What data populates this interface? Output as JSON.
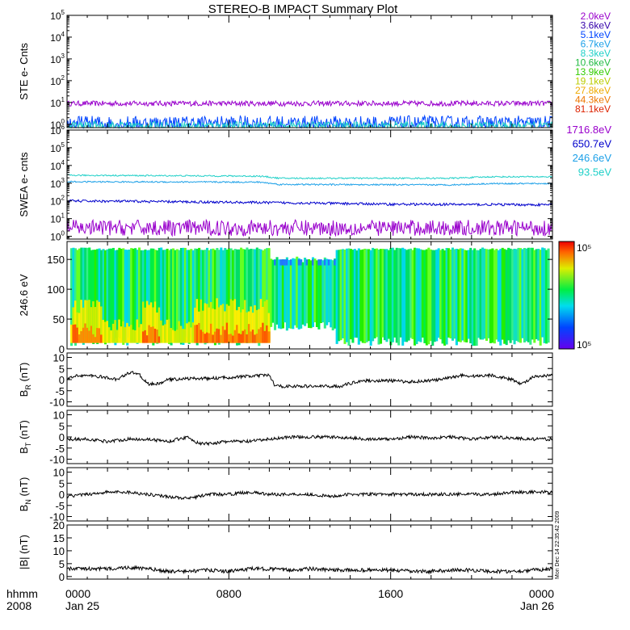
{
  "title": "STEREO-B IMPACT Summary Plot",
  "stamp": "Mon Dec 14 22:35:42 2009",
  "time_axis": {
    "label_line1": "hhmm",
    "label_line2": "2008",
    "ticks": [
      {
        "hour": 0,
        "label": "0000",
        "date": "Jan 25"
      },
      {
        "hour": 8,
        "label": "0800",
        "date": ""
      },
      {
        "hour": 16,
        "label": "1600",
        "date": ""
      },
      {
        "hour": 24,
        "label": "0000",
        "date": "Jan 26"
      }
    ],
    "range_hours": [
      0,
      24
    ]
  },
  "chart_data": [
    {
      "id": "ste",
      "type": "line",
      "ylabel": "STE e- Cnts",
      "yscale": "log",
      "ylim": [
        0.7,
        100000
      ],
      "yticks": [
        1,
        10,
        100,
        1000,
        10000,
        100000
      ],
      "legend": [
        {
          "label": "2.0keV",
          "color": "#9900cc"
        },
        {
          "label": "3.6keV",
          "color": "#3300aa"
        },
        {
          "label": "5.1keV",
          "color": "#0044ff"
        },
        {
          "label": "6.7keV",
          "color": "#1ca0e8"
        },
        {
          "label": "8.3keV",
          "color": "#1fd0c8"
        },
        {
          "label": "10.6keV",
          "color": "#22bb44"
        },
        {
          "label": "13.9keV",
          "color": "#33cc00"
        },
        {
          "label": "19.1keV",
          "color": "#bbcc00"
        },
        {
          "label": "27.8keV",
          "color": "#eeaa00"
        },
        {
          "label": "44.3keV",
          "color": "#ee7700"
        },
        {
          "label": "81.1keV",
          "color": "#dd2200"
        }
      ],
      "series": [
        {
          "color": "#9900cc",
          "level": 9.0,
          "noise": 0.12
        },
        {
          "color": "#0044ff",
          "level": 1.1,
          "noise": 0.35
        },
        {
          "color": "#1fd0c8",
          "level": 0.85,
          "noise": 0.2
        }
      ]
    },
    {
      "id": "swea",
      "type": "line",
      "ylabel": "SWEA e- cnts",
      "yscale": "log",
      "ylim": [
        0.7,
        1000000
      ],
      "yticks": [
        1,
        10,
        100,
        1000,
        10000,
        100000,
        1000000
      ],
      "legend": [
        {
          "label": "1716.8eV",
          "color": "#9900cc"
        },
        {
          "label": "650.7eV",
          "color": "#0000cc"
        },
        {
          "label": "246.6eV",
          "color": "#1ca0e8"
        },
        {
          "label": "93.5eV",
          "color": "#1fd0c8"
        }
      ],
      "series": [
        {
          "color": "#1fd0c8",
          "profile": [
            [
              0,
              2800
            ],
            [
              9.5,
              2500
            ],
            [
              10.5,
              1900
            ],
            [
              19,
              1900
            ],
            [
              21,
              2300
            ],
            [
              24,
              2300
            ]
          ],
          "noise": 0.04
        },
        {
          "color": "#1ca0e8",
          "profile": [
            [
              0,
              1200
            ],
            [
              9.5,
              1150
            ],
            [
              10.5,
              850
            ],
            [
              19,
              800
            ],
            [
              21,
              950
            ],
            [
              24,
              950
            ]
          ],
          "noise": 0.04
        },
        {
          "color": "#0000cc",
          "profile": [
            [
              0,
              100
            ],
            [
              10,
              80
            ],
            [
              16,
              65
            ],
            [
              24,
              60
            ]
          ],
          "noise": 0.07
        },
        {
          "color": "#9900cc",
          "profile": [
            [
              0,
              3
            ],
            [
              24,
              3
            ]
          ],
          "noise": 0.45
        }
      ]
    },
    {
      "id": "pad",
      "type": "heatmap",
      "ylabel": "246.6 eV",
      "ylim": [
        0,
        180
      ],
      "yticks": [
        0,
        50,
        100,
        150
      ],
      "colorbar_labels": [
        "10⁵",
        "10⁵"
      ],
      "notes": "pitch-angle distribution; high flux (yellow-red) at low pitch angle 0-10 hr; mostly green/cyan elsewhere"
    },
    {
      "id": "br",
      "type": "line",
      "ylabel": "B_R (nT)",
      "ylim": [
        -12,
        12
      ],
      "yticks": [
        -10,
        -5,
        0,
        5,
        10
      ],
      "profile": [
        [
          0,
          0
        ],
        [
          0.5,
          2
        ],
        [
          1.5,
          1.5
        ],
        [
          2.5,
          0
        ],
        [
          3,
          3
        ],
        [
          3.5,
          3
        ],
        [
          4,
          -2
        ],
        [
          4.5,
          -2
        ],
        [
          5,
          0
        ],
        [
          6,
          0.5
        ],
        [
          7,
          0.5
        ],
        [
          8,
          1
        ],
        [
          9,
          1.5
        ],
        [
          10,
          2
        ],
        [
          10.3,
          -3
        ],
        [
          12,
          -3
        ],
        [
          13.5,
          -3
        ],
        [
          14.5,
          -0.5
        ],
        [
          16,
          -0.5
        ],
        [
          17,
          -1
        ],
        [
          18.5,
          0
        ],
        [
          19.5,
          2
        ],
        [
          20,
          1.5
        ],
        [
          21,
          2
        ],
        [
          22,
          0
        ],
        [
          22.5,
          -2
        ],
        [
          23,
          1
        ],
        [
          24,
          2
        ]
      ]
    },
    {
      "id": "bt",
      "type": "line",
      "ylabel": "B_T (nT)",
      "ylim": [
        -12,
        12
      ],
      "yticks": [
        -10,
        -5,
        0,
        5,
        10
      ],
      "profile": [
        [
          0,
          -1
        ],
        [
          1,
          -1
        ],
        [
          2,
          -2
        ],
        [
          3,
          -1
        ],
        [
          4,
          -1
        ],
        [
          5,
          -2
        ],
        [
          6,
          0
        ],
        [
          6.5,
          -3
        ],
        [
          7,
          -3
        ],
        [
          8,
          -2
        ],
        [
          9,
          -2
        ],
        [
          10,
          -1
        ],
        [
          11,
          0
        ],
        [
          12,
          0
        ],
        [
          13,
          0
        ],
        [
          14,
          -0.5
        ],
        [
          15,
          -1
        ],
        [
          16,
          -1
        ],
        [
          17,
          0
        ],
        [
          18,
          -0.5
        ],
        [
          19,
          0
        ],
        [
          20,
          -1
        ],
        [
          21,
          0
        ],
        [
          22,
          -0.5
        ],
        [
          23,
          -1
        ],
        [
          24,
          -1
        ]
      ]
    },
    {
      "id": "bn",
      "type": "line",
      "ylabel": "B_N (nT)",
      "ylim": [
        -12,
        12
      ],
      "yticks": [
        -10,
        -5,
        0,
        5,
        10
      ],
      "profile": [
        [
          0,
          -1
        ],
        [
          1,
          0
        ],
        [
          2,
          1
        ],
        [
          3,
          1
        ],
        [
          4,
          0
        ],
        [
          5,
          -1
        ],
        [
          6,
          -2
        ],
        [
          7,
          0
        ],
        [
          8,
          0
        ],
        [
          9,
          1
        ],
        [
          10,
          0
        ],
        [
          12,
          0
        ],
        [
          13,
          -1
        ],
        [
          14,
          0
        ],
        [
          15,
          0
        ],
        [
          16,
          0
        ],
        [
          17,
          0
        ],
        [
          18,
          0
        ],
        [
          19,
          0
        ],
        [
          20,
          0
        ],
        [
          21,
          0
        ],
        [
          22,
          1
        ],
        [
          23,
          1
        ],
        [
          24,
          1
        ]
      ]
    },
    {
      "id": "bmag",
      "type": "line",
      "ylabel": "|B| (nT)",
      "ylim": [
        -1,
        20
      ],
      "yticks": [
        0,
        5,
        10,
        15,
        20
      ],
      "profile": [
        [
          0,
          3
        ],
        [
          1,
          3
        ],
        [
          2,
          3
        ],
        [
          3,
          3.5
        ],
        [
          4,
          3
        ],
        [
          5,
          2
        ],
        [
          6,
          2
        ],
        [
          7,
          2.5
        ],
        [
          8,
          2
        ],
        [
          9,
          3
        ],
        [
          10,
          3
        ],
        [
          11,
          2.5
        ],
        [
          12,
          3
        ],
        [
          13,
          2.5
        ],
        [
          14,
          2.5
        ],
        [
          15,
          2.5
        ],
        [
          16,
          2.5
        ],
        [
          17,
          2
        ],
        [
          18,
          2
        ],
        [
          19,
          2.5
        ],
        [
          20,
          2.5
        ],
        [
          21,
          2
        ],
        [
          22,
          2
        ],
        [
          23,
          2.5
        ],
        [
          24,
          3
        ]
      ]
    }
  ]
}
